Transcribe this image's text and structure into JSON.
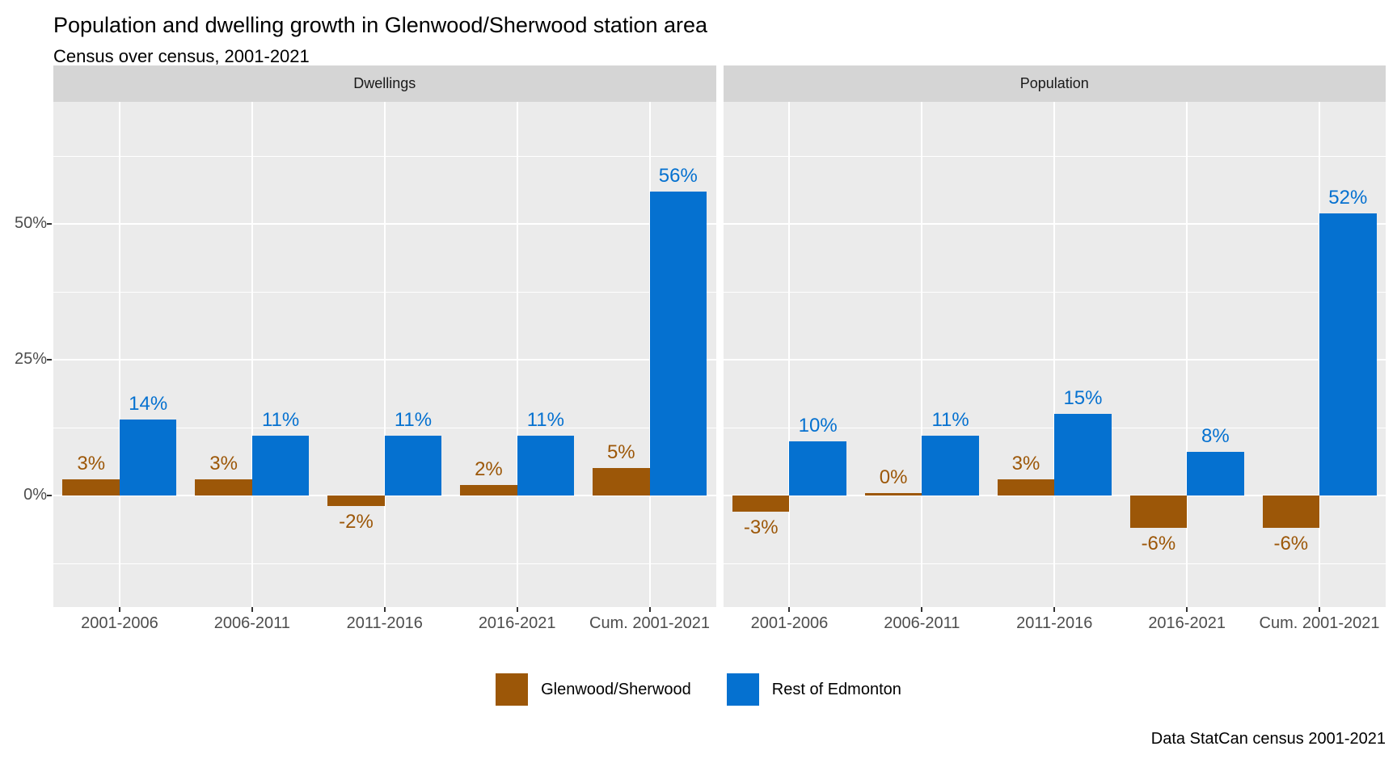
{
  "chart_data": {
    "type": "bar",
    "title": "Population and dwelling growth in Glenwood/Sherwood station area",
    "subtitle": "Census over census, 2001-2021",
    "caption": "Data StatCan census 2001-2021",
    "categories": [
      "2001-2006",
      "2006-2011",
      "2011-2016",
      "2016-2021",
      "Cum. 2001-2021"
    ],
    "facets": [
      {
        "label": "Dwellings",
        "series": [
          {
            "name": "Glenwood/Sherwood",
            "values": [
              3,
              3,
              -2,
              2,
              5
            ],
            "labels": [
              "3%",
              "3%",
              "-2%",
              "2%",
              "5%"
            ]
          },
          {
            "name": "Rest of Edmonton",
            "values": [
              14,
              11,
              11,
              11,
              56
            ],
            "labels": [
              "14%",
              "11%",
              "11%",
              "11%",
              "56%"
            ]
          }
        ]
      },
      {
        "label": "Population",
        "series": [
          {
            "name": "Glenwood/Sherwood",
            "values": [
              -3,
              0,
              3,
              -6,
              -6
            ],
            "labels": [
              "-3%",
              "0%",
              "3%",
              "-6%",
              "-6%"
            ]
          },
          {
            "name": "Rest of Edmonton",
            "values": [
              10,
              11,
              15,
              8,
              52
            ],
            "labels": [
              "10%",
              "11%",
              "15%",
              "8%",
              "52%"
            ]
          }
        ]
      }
    ],
    "y_axis": {
      "ticks": [
        {
          "value": 0,
          "label": "0%"
        },
        {
          "value": 25,
          "label": "25%"
        },
        {
          "value": 50,
          "label": "50%"
        }
      ],
      "minor": [
        -12.5,
        12.5,
        37.5,
        62.5
      ],
      "ylim": [
        -20.5,
        72.5
      ]
    },
    "legend": [
      {
        "label": "Glenwood/Sherwood",
        "color": "#9C5708"
      },
      {
        "label": "Rest of Edmonton",
        "color": "#0571D0"
      }
    ],
    "legend_position": "bottom",
    "grid": true,
    "colors": {
      "glenwood_sherwood": "#9C5708",
      "rest_of_edmonton": "#0571D0",
      "panel_background": "#EBEBEB",
      "strip_background": "#D5D5D5",
      "gridline": "#FFFFFF",
      "axis_text": "#4D4D4D"
    }
  }
}
